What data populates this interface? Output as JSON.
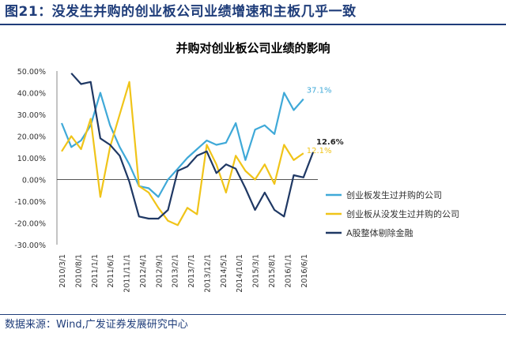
{
  "figure": {
    "title": "图21：没发生并购的创业板公司业绩增速和主板几乎一致",
    "source": "数据来源：Wind,广发证券发展研究中心"
  },
  "chart_data": {
    "type": "line",
    "title": "并购对创业板公司业绩的影响",
    "xlabel": "",
    "ylabel": "",
    "ylim": [
      -0.3,
      0.5
    ],
    "yticks": [
      "50.00%",
      "40.00%",
      "30.00%",
      "20.00%",
      "10.00%",
      "0.00%",
      "-10.00%",
      "-20.00%",
      "-30.00%"
    ],
    "grid": false,
    "legend_position": "right",
    "x": [
      "2010/3/1",
      "2010/6/1",
      "2010/9/1",
      "2010/12/1",
      "2011/3/1",
      "2011/6/1",
      "2011/9/1",
      "2011/12/1",
      "2012/3/1",
      "2012/6/1",
      "2012/9/1",
      "2012/12/1",
      "2013/3/1",
      "2013/6/1",
      "2013/9/1",
      "2013/12/1",
      "2014/3/1",
      "2014/6/1",
      "2014/9/1",
      "2014/12/1",
      "2015/3/1",
      "2015/6/1",
      "2015/9/1",
      "2015/12/1",
      "2016/3/1",
      "2016/6/1",
      "2016/9/1"
    ],
    "xticks": [
      "2010/3/1",
      "2010/8/1",
      "2011/1/1",
      "2011/6/1",
      "2011/11/1",
      "2012/4/1",
      "2012/9/1",
      "2013/2/1",
      "2013/7/1",
      "2013/12/1",
      "2014/5/1",
      "2014/10/1",
      "2015/3/1",
      "2015/8/1",
      "2016/1/1",
      "2016/6/1"
    ],
    "series": [
      {
        "name": "创业板发生过并购的公司",
        "color": "#3fa9d8",
        "end_label": "37.1%",
        "values": [
          0.26,
          0.15,
          0.18,
          0.25,
          0.4,
          0.25,
          0.15,
          0.07,
          -0.03,
          -0.04,
          -0.08,
          0.0,
          0.05,
          0.1,
          0.14,
          0.18,
          0.16,
          0.17,
          0.26,
          0.09,
          0.23,
          0.25,
          0.21,
          0.4,
          0.32,
          0.371,
          null
        ]
      },
      {
        "name": "创业板从没发生过并购的公司",
        "color": "#f0c419",
        "end_label": "12.1%",
        "values": [
          0.13,
          0.2,
          0.14,
          0.28,
          -0.08,
          0.15,
          0.3,
          0.45,
          -0.03,
          -0.06,
          -0.13,
          -0.19,
          -0.21,
          -0.13,
          -0.16,
          0.16,
          0.07,
          -0.06,
          0.11,
          0.04,
          0.0,
          0.07,
          -0.02,
          0.16,
          0.09,
          0.121,
          null
        ]
      },
      {
        "name": "A股整体剔除金融",
        "color": "#1f3864",
        "end_label": "12.6%",
        "values": [
          null,
          0.49,
          0.44,
          0.45,
          0.19,
          0.16,
          0.11,
          -0.01,
          -0.17,
          -0.18,
          -0.18,
          -0.14,
          0.04,
          0.06,
          0.11,
          0.13,
          0.03,
          0.07,
          0.05,
          -0.04,
          -0.14,
          -0.06,
          -0.14,
          -0.17,
          0.02,
          0.01,
          0.126
        ]
      }
    ]
  }
}
